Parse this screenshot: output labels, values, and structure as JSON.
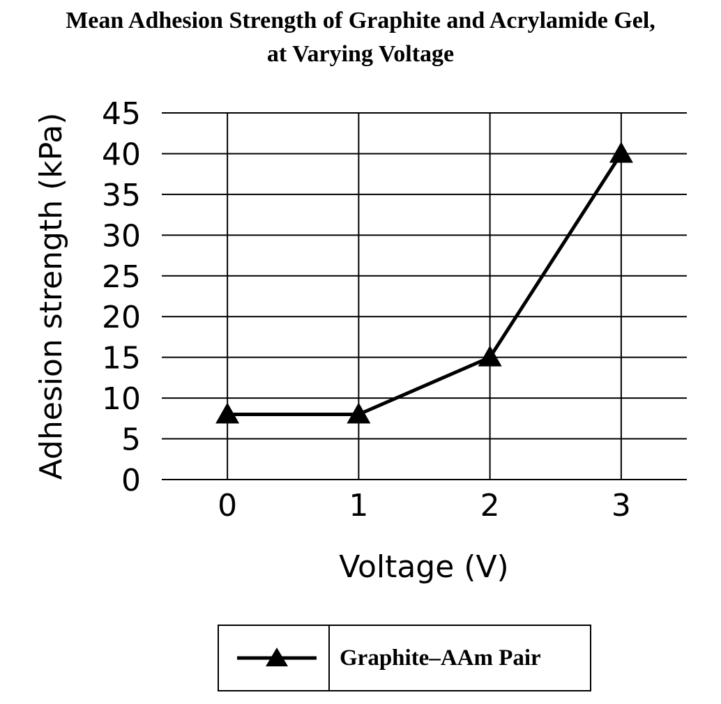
{
  "chart_data": {
    "type": "line",
    "title": [
      "Mean Adhesion Strength of Graphite and Acrylamide Gel,",
      "at Varying Voltage"
    ],
    "xlabel": "Voltage (V)",
    "ylabel": "Adhesion strength (kPa)",
    "x": [
      0,
      1,
      2,
      3
    ],
    "x_ticks": [
      "0",
      "1",
      "2",
      "3"
    ],
    "y_ticks": [
      "0",
      "5",
      "10",
      "15",
      "20",
      "25",
      "30",
      "35",
      "40",
      "45"
    ],
    "ylim": [
      0,
      45
    ],
    "xlim": [
      -0.5,
      3.5
    ],
    "grid": true,
    "legend_position": "bottom-center",
    "series": [
      {
        "name": "Graphite–AAm Pair",
        "marker": "triangle",
        "color": "#000000",
        "values": [
          8,
          8,
          15,
          40
        ]
      }
    ]
  }
}
